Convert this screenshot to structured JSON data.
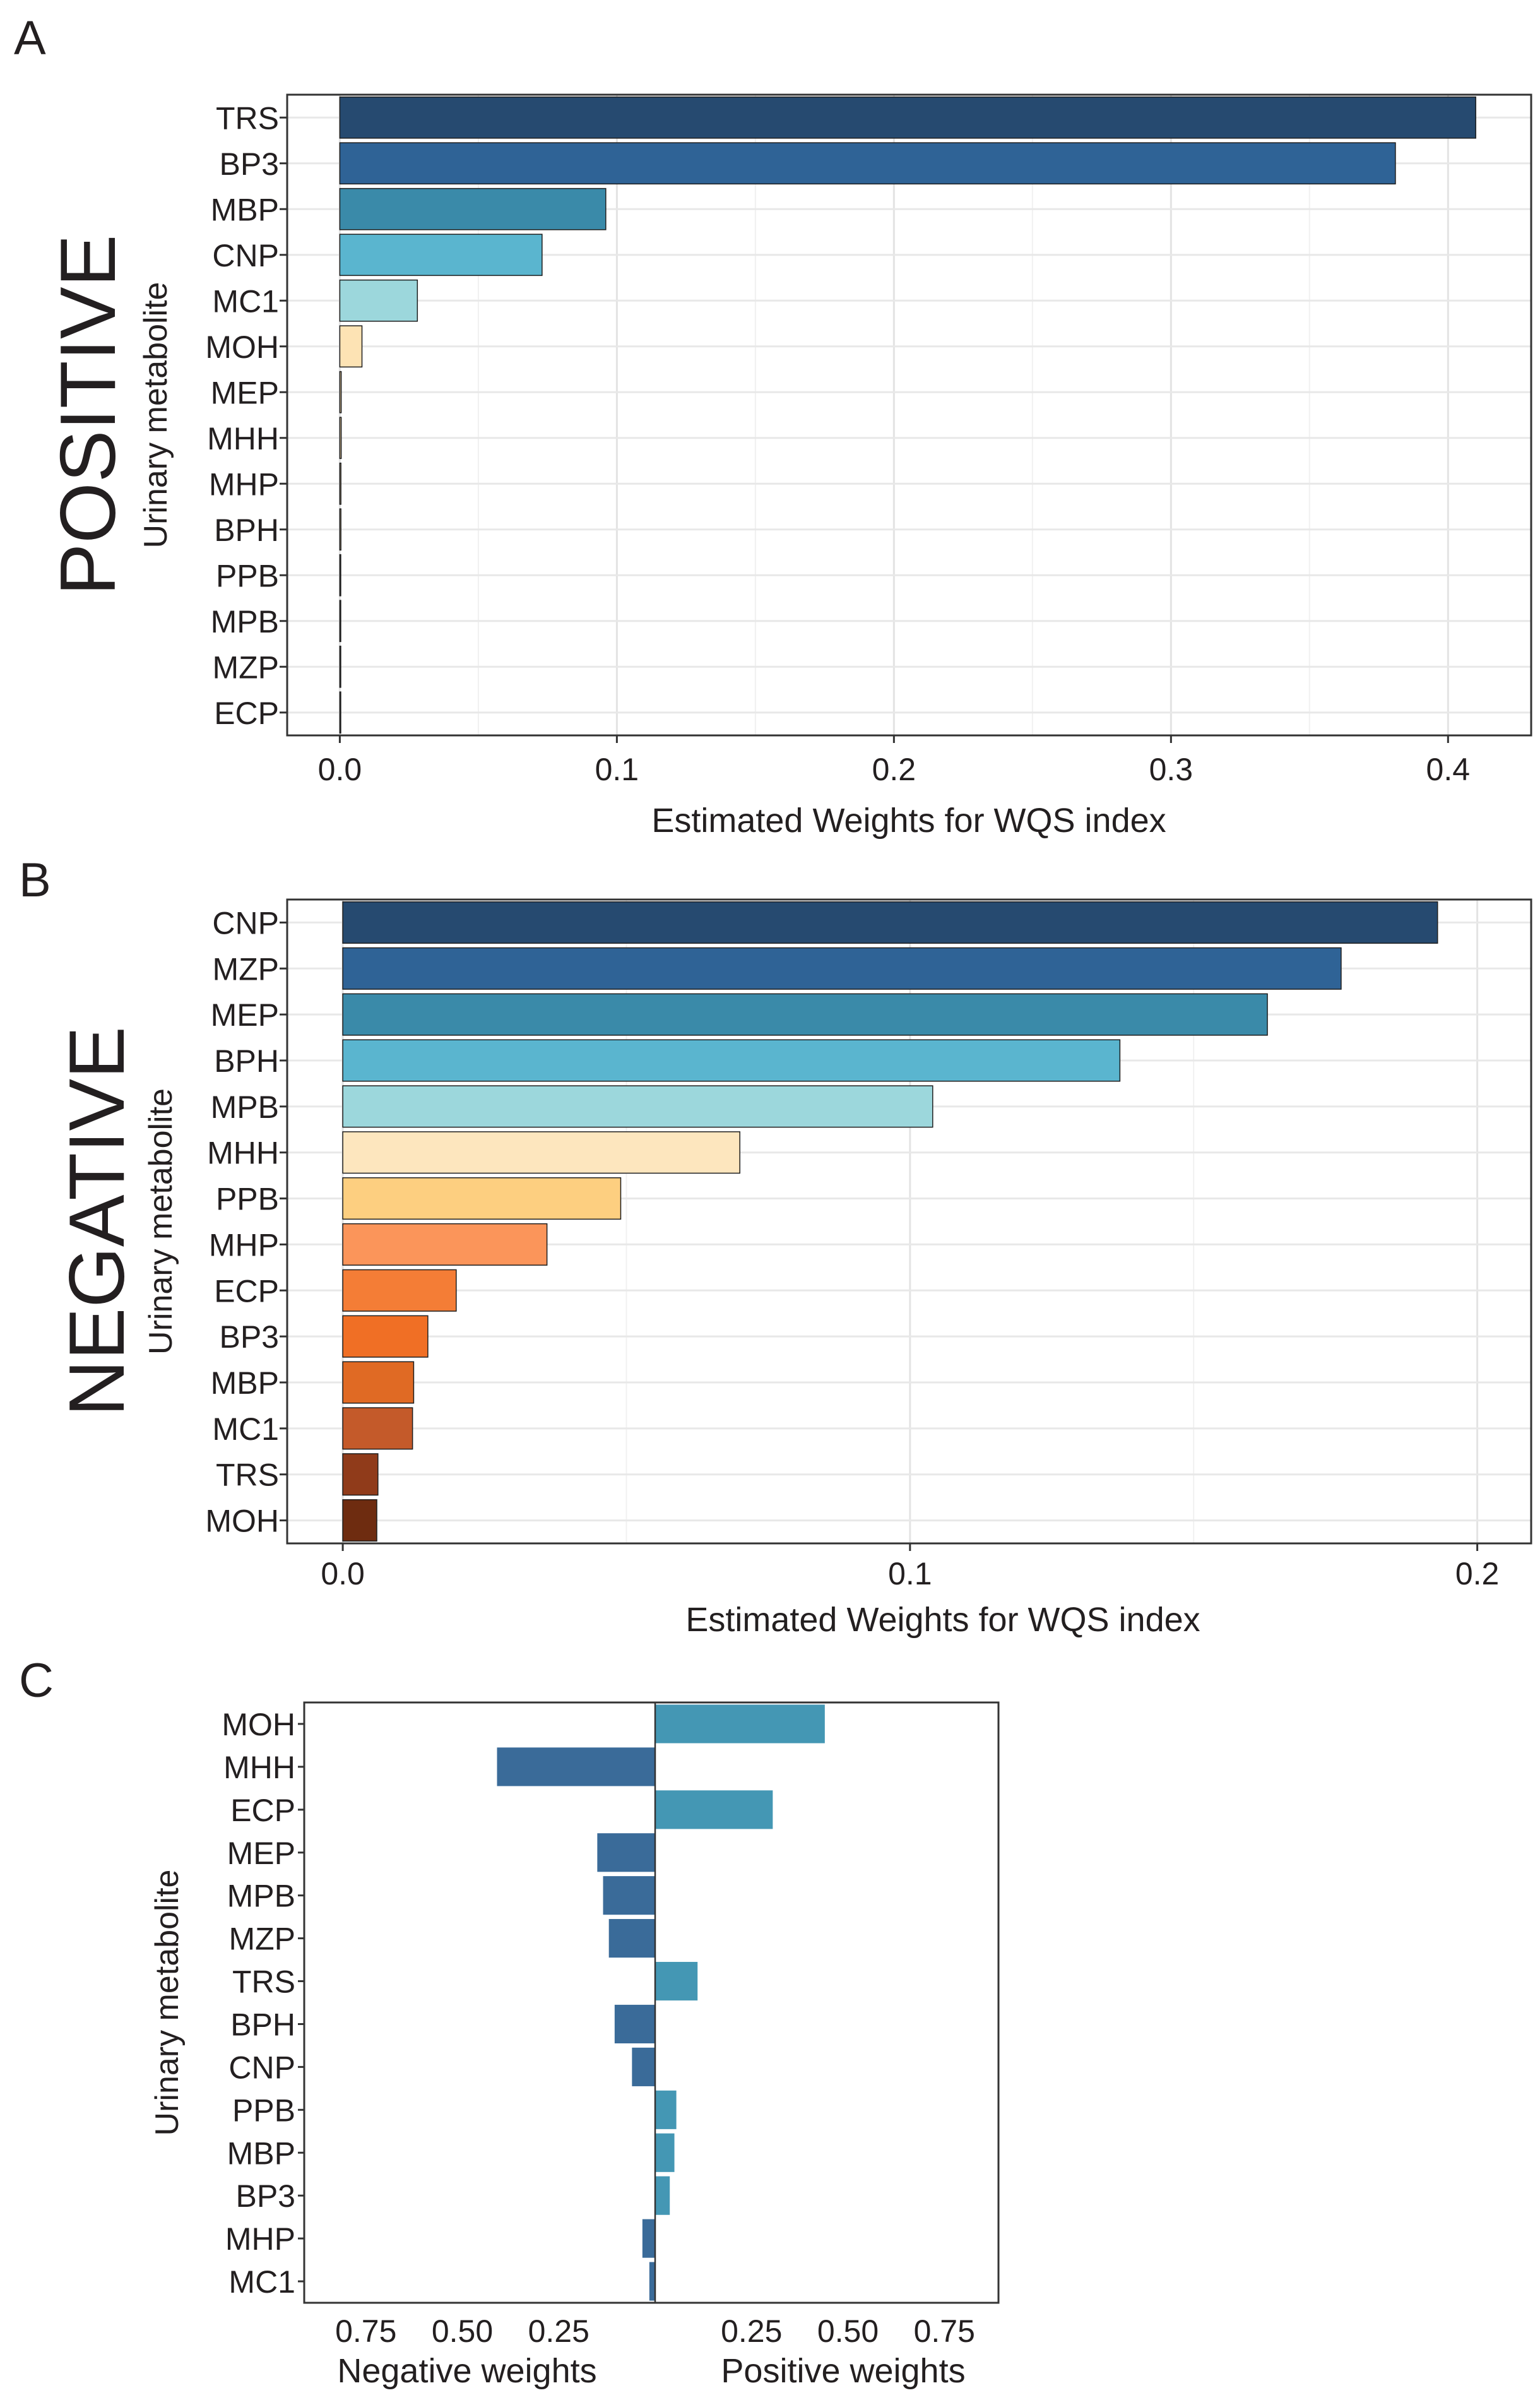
{
  "chart_data": [
    {
      "panel": "A",
      "type": "bar",
      "orientation": "horizontal",
      "side_title": "POSITIVE",
      "xlabel": "Estimated Weights for WQS index",
      "ylabel": "Urinary metabolite",
      "xlim": [
        -0.019,
        0.43
      ],
      "xticks": [
        0.0,
        0.1,
        0.2,
        0.3,
        0.4
      ],
      "xtick_labels": [
        "0.0",
        "0.1",
        "0.2",
        "0.3",
        "0.4"
      ],
      "minor_ticks": [
        0.05,
        0.15,
        0.25,
        0.35
      ],
      "grid": true,
      "categories": [
        "TRS",
        "BP3",
        "MBP",
        "CNP",
        "MC1",
        "MOH",
        "MEP",
        "MHH",
        "MHP",
        "BPH",
        "PPB",
        "MPB",
        "MZP",
        "ECP"
      ],
      "values": [
        0.41,
        0.381,
        0.096,
        0.073,
        0.028,
        0.008,
        0.0005,
        0.0005,
        0.0004,
        0.0004,
        0.0003,
        0.0003,
        0.0002,
        0.0002
      ],
      "colors": [
        "#264a70",
        "#2f6396",
        "#3a8aa9",
        "#5ab5cf",
        "#9cd7dc",
        "#fde3b4",
        "#f2d7a8",
        "#f2d7a8",
        "#f2d7a8",
        "#f2d7a8",
        "#f2d7a8",
        "#f2d7a8",
        "#f2d7a8",
        "#f2d7a8"
      ]
    },
    {
      "panel": "B",
      "type": "bar",
      "orientation": "horizontal",
      "side_title": "NEGATIVE",
      "xlabel": "Estimated Weights for WQS index",
      "ylabel": "Urinary metabolite",
      "xlim": [
        -0.0098,
        0.2095
      ],
      "xticks": [
        0.0,
        0.1,
        0.2
      ],
      "xtick_labels": [
        "0.0",
        "0.1",
        "0.2"
      ],
      "minor_ticks": [
        0.05,
        0.15
      ],
      "grid": true,
      "categories": [
        "CNP",
        "MZP",
        "MEP",
        "BPH",
        "MPB",
        "MHH",
        "PPB",
        "MHP",
        "ECP",
        "BP3",
        "MBP",
        "MC1",
        "TRS",
        "MOH"
      ],
      "values": [
        0.193,
        0.176,
        0.163,
        0.137,
        0.104,
        0.07,
        0.049,
        0.036,
        0.02,
        0.015,
        0.0125,
        0.0123,
        0.0062,
        0.006
      ],
      "colors": [
        "#264a70",
        "#2f6396",
        "#3a8aa9",
        "#5ab5cf",
        "#9cd7dc",
        "#fde6be",
        "#fdcf80",
        "#fb955a",
        "#f47d36",
        "#f06f25",
        "#e06a24",
        "#c45a2a",
        "#903b1a",
        "#6e2c10"
      ]
    },
    {
      "panel": "C",
      "type": "bar",
      "orientation": "horizontal",
      "layout": "back-to-back",
      "xlabel_left": "Negative weights",
      "xlabel_right": "Positive weights",
      "ylabel": "Urinary metabolite",
      "xlim": [
        -0.9,
        0.9
      ],
      "xticks": [
        -0.75,
        -0.5,
        -0.25,
        0.25,
        0.5,
        0.75
      ],
      "xtick_labels": [
        "0.75",
        "0.50",
        "0.25",
        "0.25",
        "0.50",
        "0.75"
      ],
      "grid": false,
      "categories": [
        "MOH",
        "MHH",
        "ECP",
        "MEP",
        "MPB",
        "MZP",
        "TRS",
        "BPH",
        "CNP",
        "PPB",
        "MBP",
        "BP3",
        "MHP",
        "MC1"
      ],
      "values": [
        0.44,
        -0.41,
        0.305,
        -0.15,
        -0.135,
        -0.12,
        0.11,
        -0.105,
        -0.06,
        0.055,
        0.05,
        0.038,
        -0.033,
        -0.015
      ],
      "color_negative": "#3a6b99",
      "color_positive": "#4497b4"
    }
  ],
  "panel_labels": {
    "a": "A",
    "b": "B",
    "c": "C"
  }
}
